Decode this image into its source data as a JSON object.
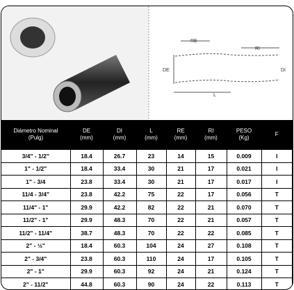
{
  "diagram": {
    "labels": {
      "re": "RE",
      "ri": "RI",
      "de": "DE",
      "di": "DI",
      "l": "L"
    }
  },
  "table": {
    "headers": [
      {
        "name": "Diámetro Nominal",
        "unit": "(Pulg)"
      },
      {
        "name": "DE",
        "unit": "(mm)"
      },
      {
        "name": "DI",
        "unit": "(mm)"
      },
      {
        "name": "L",
        "unit": "(mm)"
      },
      {
        "name": "RE",
        "unit": "(mm)"
      },
      {
        "name": "RI",
        "unit": "(mm)"
      },
      {
        "name": "PESO",
        "unit": "(Kg)"
      },
      {
        "name": "F"
      }
    ],
    "rows": [
      [
        "3/4\" - 1/2\"",
        "18.4",
        "26.7",
        "23",
        "14",
        "15",
        "0.009",
        "I"
      ],
      [
        "1\" - 1/2\"",
        "18.4",
        "33.4",
        "30",
        "21",
        "17",
        "0.021",
        "I"
      ],
      [
        "1\" - 3/4",
        "23.8",
        "33.4",
        "30",
        "21",
        "17",
        "0.017",
        "I"
      ],
      [
        "11/4 - 3/4\"",
        "23.8",
        "42.2",
        "75",
        "22",
        "17",
        "0.056",
        "T"
      ],
      [
        "11/4\" - 1\"",
        "29.9",
        "42.2",
        "82",
        "22",
        "21",
        "0.070",
        "T"
      ],
      [
        "11/2\" - 1\"",
        "29.9",
        "48.3",
        "70",
        "22",
        "21",
        "0.057",
        "T"
      ],
      [
        "11/2\" - 11/4\"",
        "38.7",
        "48.3",
        "70",
        "22",
        "22",
        "0.085",
        "T"
      ],
      [
        "2\" - ½\"",
        "18.4",
        "60.3",
        "104",
        "24",
        "27",
        "0.108",
        "T"
      ],
      [
        "2\" - 3/4\"",
        "23.8",
        "60.3",
        "110",
        "24",
        "17",
        "0.105",
        "T"
      ],
      [
        "2\" - 1\"",
        "29.9",
        "60.3",
        "92",
        "24",
        "21",
        "0.124",
        "T"
      ],
      [
        "2\" - 11/2\"",
        "44.8",
        "60.3",
        "90",
        "24",
        "22",
        "0.113",
        "T"
      ]
    ]
  }
}
